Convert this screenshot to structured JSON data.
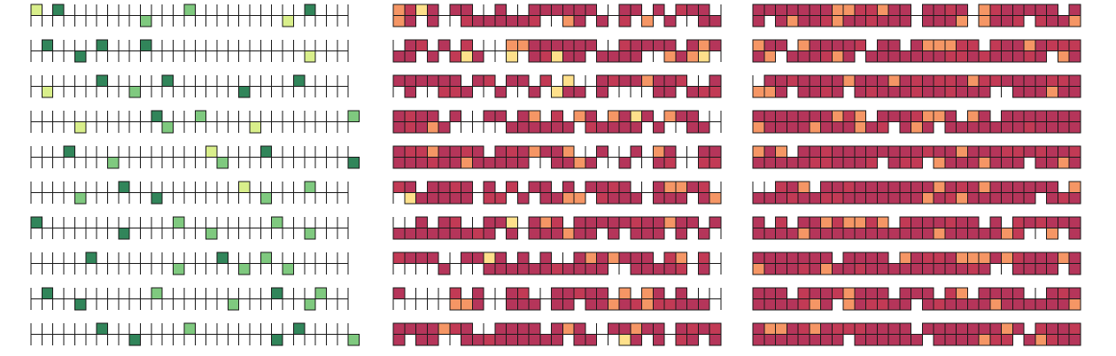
{
  "chart_data": [
    {
      "type": "heatmap",
      "panel": "left",
      "rows": 10,
      "columns": 29,
      "cells_per_column": 2,
      "value_scale": [
        1,
        3
      ],
      "colors": {
        "1": "#d9ef8b",
        "2": "#7fc97f",
        "3": "#31855a"
      },
      "cells": [
        [
          [
            0,
            0,
            1
          ],
          [
            0,
            2,
            3
          ],
          [
            1,
            10,
            2
          ],
          [
            0,
            14,
            2
          ],
          [
            0,
            25,
            3
          ],
          [
            1,
            23,
            1
          ]
        ],
        [
          [
            0,
            1,
            3
          ],
          [
            0,
            6,
            3
          ],
          [
            1,
            4,
            3
          ],
          [
            0,
            10,
            3
          ],
          [
            1,
            25,
            1
          ]
        ],
        [
          [
            1,
            1,
            1
          ],
          [
            0,
            6,
            3
          ],
          [
            1,
            9,
            2
          ],
          [
            0,
            12,
            3
          ],
          [
            1,
            19,
            3
          ],
          [
            0,
            24,
            3
          ]
        ],
        [
          [
            1,
            4,
            1
          ],
          [
            0,
            11,
            3
          ],
          [
            1,
            12,
            2
          ],
          [
            0,
            15,
            2
          ],
          [
            1,
            20,
            1
          ],
          [
            0,
            29,
            2
          ]
        ],
        [
          [
            0,
            3,
            3
          ],
          [
            1,
            7,
            2
          ],
          [
            0,
            16,
            1
          ],
          [
            1,
            17,
            2
          ],
          [
            0,
            21,
            3
          ],
          [
            1,
            29,
            3
          ]
        ],
        [
          [
            1,
            4,
            2
          ],
          [
            0,
            8,
            3
          ],
          [
            1,
            11,
            3
          ],
          [
            0,
            19,
            1
          ],
          [
            1,
            21,
            2
          ],
          [
            0,
            25,
            2
          ]
        ],
        [
          [
            0,
            0,
            3
          ],
          [
            1,
            8,
            3
          ],
          [
            0,
            13,
            2
          ],
          [
            1,
            16,
            2
          ],
          [
            0,
            22,
            2
          ],
          [
            1,
            25,
            2
          ]
        ],
        [
          [
            0,
            5,
            3
          ],
          [
            1,
            13,
            2
          ],
          [
            0,
            17,
            3
          ],
          [
            1,
            19,
            2
          ],
          [
            0,
            21,
            2
          ],
          [
            1,
            23,
            2
          ]
        ],
        [
          [
            0,
            1,
            3
          ],
          [
            1,
            4,
            3
          ],
          [
            0,
            11,
            2
          ],
          [
            1,
            18,
            2
          ],
          [
            0,
            22,
            3
          ],
          [
            1,
            25,
            2
          ],
          [
            0,
            26,
            2
          ]
        ],
        [
          [
            0,
            6,
            3
          ],
          [
            1,
            9,
            3
          ],
          [
            0,
            14,
            2
          ],
          [
            1,
            22,
            3
          ],
          [
            0,
            24,
            3
          ],
          [
            1,
            29,
            2
          ]
        ]
      ]
    },
    {
      "type": "heatmap",
      "panel": "middle",
      "rows": 10,
      "columns": 29,
      "cells_per_column": 2,
      "value_scale": [
        1,
        4
      ],
      "colors": {
        "1": "#fee08b",
        "2": "#f59665",
        "3": "#c23a55",
        "4": "#b5355a"
      },
      "grid_dims": [
        10,
        29
      ]
    },
    {
      "type": "heatmap",
      "panel": "right",
      "rows": 10,
      "columns": 29,
      "cells_per_column": 2,
      "value_scale": [
        1,
        3
      ],
      "colors": {
        "1": "#f59665",
        "2": "#c23a55",
        "3": "#b5355a"
      },
      "grid_dims": [
        10,
        29
      ]
    }
  ]
}
